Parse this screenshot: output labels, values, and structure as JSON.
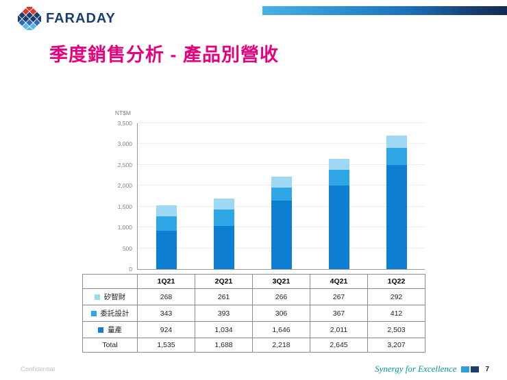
{
  "slide": {
    "brand": "FARADAY",
    "title": "季度銷售分析 - 產品別營收",
    "footer_left": "Confidential",
    "footer_right": "Synergy for Excellence",
    "page_number": "7"
  },
  "colors": {
    "title": "#e6007e",
    "brand_navy": "#1d3e71",
    "brand_red": "#e03a2f",
    "tagline_teal": "#0097a7",
    "series_light_blue": "#9fd8f4",
    "series_mid_blue": "#2fa7e6",
    "series_dark_blue": "#0e7ed0"
  },
  "chart_data": {
    "type": "bar",
    "stacked": true,
    "title": "季度銷售分析 - 產品別營收",
    "unit_label": "NT$M",
    "categories": [
      "1Q21",
      "2Q21",
      "3Q21",
      "4Q21",
      "1Q22"
    ],
    "series": [
      {
        "name": "矽智財",
        "color": "#9fd8f4",
        "values": [
          268,
          261,
          266,
          267,
          292
        ]
      },
      {
        "name": "委託設計",
        "color": "#2fa7e6",
        "values": [
          343,
          393,
          306,
          367,
          412
        ]
      },
      {
        "name": "量產",
        "color": "#0e7ed0",
        "values": [
          924,
          1034,
          1646,
          2011,
          2503
        ]
      }
    ],
    "totals_label": "Total",
    "totals": [
      1535,
      1688,
      2218,
      2645,
      3207
    ],
    "ylim": [
      0,
      3500
    ],
    "yticks": [
      0,
      500,
      1000,
      1500,
      2000,
      2500,
      3000,
      3500
    ],
    "grid": true,
    "legend_position": "table-left"
  }
}
